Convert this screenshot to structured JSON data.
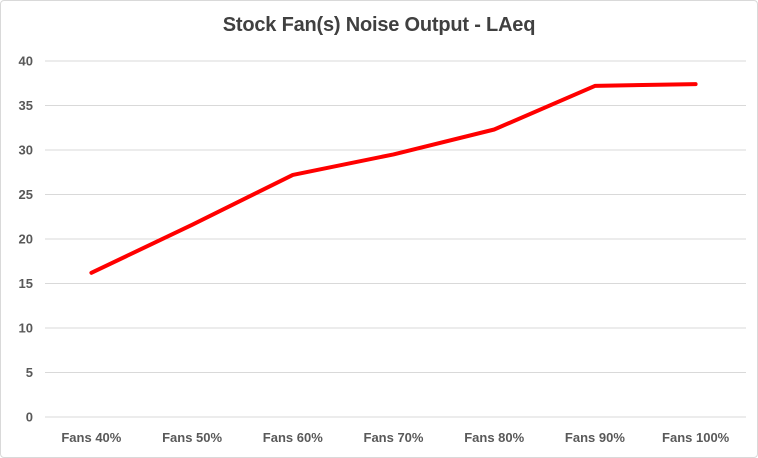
{
  "chart_data": {
    "type": "line",
    "title": "Stock Fan(s) Noise Output - LAeq",
    "categories": [
      "Fans 40%",
      "Fans 50%",
      "Fans 60%",
      "Fans 70%",
      "Fans 80%",
      "Fans 90%",
      "Fans 100%"
    ],
    "series": [
      {
        "name": "LAeq",
        "values": [
          16.2,
          21.6,
          27.2,
          29.5,
          32.3,
          37.2,
          37.4
        ]
      }
    ],
    "xlabel": "",
    "ylabel": "",
    "ylim": [
      0,
      40
    ],
    "ytick_step": 5,
    "ytick_labels": [
      "0",
      "5",
      "10",
      "15",
      "20",
      "25",
      "30",
      "35",
      "40"
    ],
    "grid": true,
    "legend_position": "none",
    "colors": {
      "line": "#ff0000",
      "title_text": "#404040",
      "tick_text": "#595959",
      "gridline": "#d9d9d9",
      "baseline": "#d9d9d9",
      "background": "#ffffff",
      "frame_border": "#d9d9d9"
    }
  }
}
